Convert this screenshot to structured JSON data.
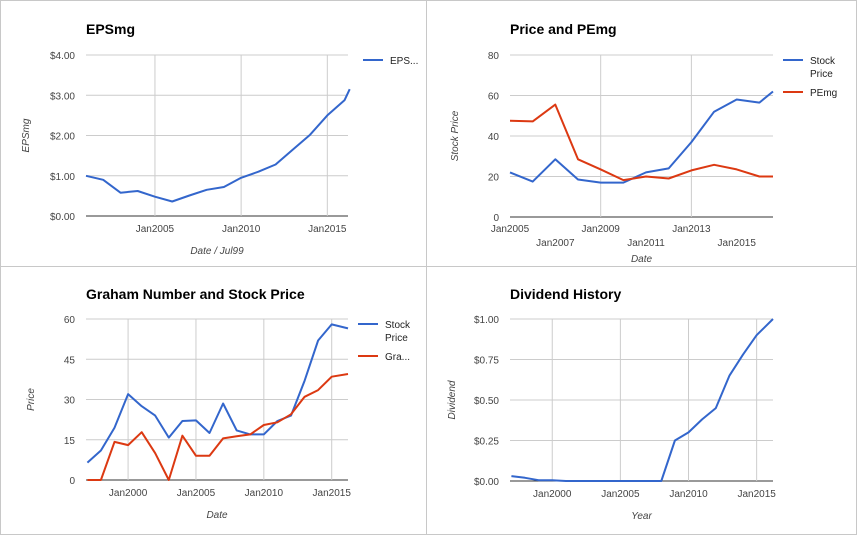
{
  "chart_data": [
    {
      "type": "line",
      "title": "EPSmg",
      "xlabel": "Date / Jul99",
      "ylabel": "EPSmg",
      "ylim": [
        0,
        4
      ],
      "xlim": [
        2001.0,
        2016.2
      ],
      "yticks": [
        {
          "v": 0,
          "label": "$0.00"
        },
        {
          "v": 1,
          "label": "$1.00"
        },
        {
          "v": 2,
          "label": "$2.00"
        },
        {
          "v": 3,
          "label": "$3.00"
        },
        {
          "v": 4,
          "label": "$4.00"
        }
      ],
      "xticks": [
        {
          "v": 2005,
          "label": "Jan2005",
          "grid": true
        },
        {
          "v": 2010,
          "label": "Jan2010",
          "grid": true
        },
        {
          "v": 2015,
          "label": "Jan2015",
          "grid": true
        }
      ],
      "legend_position": "right",
      "series": [
        {
          "name": "EPS...",
          "color": "#3366cc",
          "x": [
            2001.0,
            2002.0,
            2003.0,
            2004.0,
            2005.0,
            2006.0,
            2007.0,
            2008.0,
            2009.0,
            2010.0,
            2011.0,
            2012.0,
            2013.0,
            2014.0,
            2015.0,
            2016.0,
            2016.3
          ],
          "y": [
            1.0,
            0.9,
            0.58,
            0.62,
            0.48,
            0.36,
            0.51,
            0.65,
            0.72,
            0.95,
            1.1,
            1.28,
            1.65,
            2.02,
            2.5,
            2.88,
            3.15
          ]
        }
      ]
    },
    {
      "type": "line",
      "title": "Price and PEmg",
      "xlabel": "Date",
      "ylabel": "Stock Price",
      "ylim": [
        0,
        80
      ],
      "xlim": [
        2005.0,
        2016.6
      ],
      "yticks": [
        {
          "v": 0,
          "label": "0"
        },
        {
          "v": 20,
          "label": "20"
        },
        {
          "v": 40,
          "label": "40"
        },
        {
          "v": 60,
          "label": "60"
        },
        {
          "v": 80,
          "label": "80"
        }
      ],
      "xticks": [
        {
          "v": 2005,
          "label": "Jan2005",
          "grid": false,
          "row": 1
        },
        {
          "v": 2007,
          "label": "Jan2007",
          "grid": false,
          "row": 2
        },
        {
          "v": 2009,
          "label": "Jan2009",
          "grid": true,
          "row": 1
        },
        {
          "v": 2011,
          "label": "Jan2011",
          "grid": false,
          "row": 2
        },
        {
          "v": 2013,
          "label": "Jan2013",
          "grid": true,
          "row": 1
        },
        {
          "v": 2015,
          "label": "Jan2015",
          "grid": false,
          "row": 2
        }
      ],
      "legend_position": "right",
      "series": [
        {
          "name": "Stock Price",
          "color": "#3366cc",
          "x": [
            2005.0,
            2006.0,
            2007.0,
            2008.0,
            2009.0,
            2010.0,
            2011.0,
            2012.0,
            2013.0,
            2014.0,
            2015.0,
            2016.0,
            2016.6
          ],
          "y": [
            22,
            17.5,
            28.5,
            18.5,
            17,
            17,
            22,
            24,
            37,
            52,
            58,
            56.5,
            62
          ]
        },
        {
          "name": "PEmg",
          "color": "#dc3912",
          "x": [
            2005.0,
            2006.0,
            2007.0,
            2008.0,
            2009.0,
            2010.0,
            2011.0,
            2012.0,
            2013.0,
            2014.0,
            2015.0,
            2016.0,
            2016.6
          ],
          "y": [
            47.5,
            47.2,
            55.5,
            28.5,
            23.5,
            18.2,
            20,
            19,
            23,
            25.8,
            23.5,
            20,
            20
          ]
        }
      ]
    },
    {
      "type": "line",
      "title": "Graham Number and Stock Price",
      "xlabel": "Date",
      "ylabel": "Price",
      "ylim": [
        0,
        60
      ],
      "xlim": [
        1996.9,
        2016.2
      ],
      "yticks": [
        {
          "v": 0,
          "label": "0"
        },
        {
          "v": 15,
          "label": "15"
        },
        {
          "v": 30,
          "label": "30"
        },
        {
          "v": 45,
          "label": "45"
        },
        {
          "v": 60,
          "label": "60"
        }
      ],
      "xticks": [
        {
          "v": 2000,
          "label": "Jan2000",
          "grid": true
        },
        {
          "v": 2005,
          "label": "Jan2005",
          "grid": true
        },
        {
          "v": 2010,
          "label": "Jan2010",
          "grid": true
        },
        {
          "v": 2015,
          "label": "Jan2015",
          "grid": true
        }
      ],
      "legend_position": "right",
      "series": [
        {
          "name": "Stock Price",
          "color": "#3366cc",
          "x": [
            1997.0,
            1998.0,
            1999.0,
            2000.0,
            2001.0,
            2002.0,
            2003.0,
            2004.0,
            2005.0,
            2006.0,
            2007.0,
            2008.0,
            2009.0,
            2010.0,
            2011.0,
            2012.0,
            2013.0,
            2014.0,
            2015.0,
            2016.2
          ],
          "y": [
            6.5,
            11,
            19.5,
            32,
            27.5,
            24,
            15.8,
            22,
            22.2,
            17.5,
            28.5,
            18.5,
            17,
            17,
            22,
            24,
            37,
            52,
            58,
            56.5
          ]
        },
        {
          "name": "Gra...",
          "color": "#dc3912",
          "x": [
            1997.0,
            1998.0,
            1999.0,
            2000.0,
            2001.0,
            2002.0,
            2003.0,
            2004.0,
            2005.0,
            2006.0,
            2007.0,
            2008.0,
            2009.0,
            2010.0,
            2011.0,
            2012.0,
            2013.0,
            2014.0,
            2015.0,
            2016.2
          ],
          "y": [
            0,
            0,
            14.2,
            13,
            17.8,
            10,
            0,
            16.5,
            9,
            9,
            15.5,
            16.3,
            17,
            20.5,
            21.5,
            24.5,
            31,
            33.5,
            38.5,
            39.5
          ]
        }
      ]
    },
    {
      "type": "line",
      "title": "Dividend History",
      "xlabel": "Year",
      "ylabel": "Dividend",
      "ylim": [
        0,
        1
      ],
      "xlim": [
        1996.9,
        2016.2
      ],
      "yticks": [
        {
          "v": 0,
          "label": "$0.00"
        },
        {
          "v": 0.25,
          "label": "$0.25"
        },
        {
          "v": 0.5,
          "label": "$0.50"
        },
        {
          "v": 0.75,
          "label": "$0.75"
        },
        {
          "v": 1,
          "label": "$1.00"
        }
      ],
      "xticks": [
        {
          "v": 2000,
          "label": "Jan2000",
          "grid": true
        },
        {
          "v": 2005,
          "label": "Jan2005",
          "grid": true
        },
        {
          "v": 2010,
          "label": "Jan2010",
          "grid": true
        },
        {
          "v": 2015,
          "label": "Jan2015",
          "grid": true
        }
      ],
      "legend_position": "none",
      "series": [
        {
          "name": "",
          "color": "#3366cc",
          "x": [
            1997.0,
            1998.0,
            1999.0,
            2000.0,
            2001.0,
            2002.0,
            2003.0,
            2004.0,
            2005.0,
            2006.0,
            2007.0,
            2008.0,
            2009.0,
            2010.0,
            2011.0,
            2012.0,
            2013.0,
            2014.0,
            2015.0,
            2016.2
          ],
          "y": [
            0.03,
            0.02,
            0.005,
            0.005,
            0,
            0,
            0,
            0,
            0,
            0,
            0,
            0,
            0.25,
            0.3,
            0.38,
            0.45,
            0.65,
            0.78,
            0.9,
            1.0
          ]
        }
      ]
    }
  ]
}
